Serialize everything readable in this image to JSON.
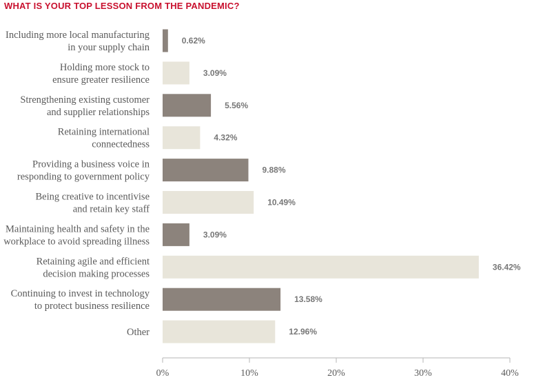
{
  "chart_data": {
    "type": "bar",
    "orientation": "horizontal",
    "title": "WHAT IS YOUR TOP LESSON FROM THE PANDEMIC?",
    "categories": [
      [
        "Including more local manufacturing",
        "in your supply chain"
      ],
      [
        "Holding more stock to",
        "ensure greater resilience"
      ],
      [
        "Strengthening existing customer",
        "and supplier relationships"
      ],
      [
        "Retaining international",
        "connectedness"
      ],
      [
        "Providing a business voice in",
        "responding to government policy"
      ],
      [
        "Being creative to incentivise",
        "and retain key staff"
      ],
      [
        "Maintaining health and safety in the",
        "workplace to avoid spreading illness"
      ],
      [
        "Retaining agile and efficient",
        "decision making processes"
      ],
      [
        "Continuing to invest in technology",
        "to protect business resilience"
      ],
      [
        "Other"
      ]
    ],
    "values": [
      0.62,
      3.09,
      5.56,
      4.32,
      9.88,
      10.49,
      3.09,
      36.42,
      13.58,
      12.96
    ],
    "value_labels": [
      "0.62%",
      "3.09%",
      "5.56%",
      "4.32%",
      "9.88%",
      "10.49%",
      "3.09%",
      "36.42%",
      "13.58%",
      "12.96%"
    ],
    "xlim": [
      0,
      40
    ],
    "x_ticks": [
      0,
      10,
      20,
      30,
      40
    ],
    "x_tick_labels": [
      "0%",
      "10%",
      "20%",
      "30%",
      "40%"
    ],
    "grid": false,
    "colors": {
      "title": "#c8102e",
      "bar_dark": "#8c837c",
      "bar_light": "#e8e5da",
      "axis": "#b5b5b5",
      "label_text": "#5a5a5a",
      "value_text": "#777777"
    },
    "bar_color_pattern": [
      "dark",
      "light"
    ]
  }
}
